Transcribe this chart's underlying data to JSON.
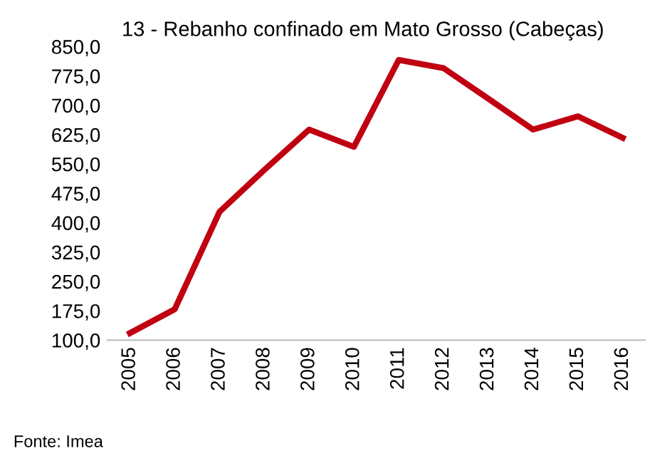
{
  "chart_data": {
    "type": "line",
    "title": "13 - Rebanho confinado em Mato Grosso (Cabeças)",
    "categories": [
      "2005",
      "2006",
      "2007",
      "2008",
      "2009",
      "2010",
      "2011",
      "2012",
      "2013",
      "2014",
      "2015",
      "2016"
    ],
    "series": [
      {
        "color": "#c00010",
        "values": [
          118,
          179,
          428,
          535,
          638,
          594,
          816,
          795,
          717,
          638,
          672,
          617
        ]
      }
    ],
    "ylim": [
      100,
      850
    ],
    "yticks": [
      {
        "value": 100,
        "label": "100,0"
      },
      {
        "value": 175,
        "label": "175,0"
      },
      {
        "value": 250,
        "label": "250,0"
      },
      {
        "value": 325,
        "label": "325,0"
      },
      {
        "value": 400,
        "label": "400,0"
      },
      {
        "value": 475,
        "label": "475,0"
      },
      {
        "value": 550,
        "label": "550,0"
      },
      {
        "value": 625,
        "label": "625,0"
      },
      {
        "value": 700,
        "label": "700,0"
      },
      {
        "value": 775,
        "label": "775,0"
      },
      {
        "value": 850,
        "label": "850,0"
      }
    ],
    "grid": false,
    "legend": false,
    "marker": "none",
    "line_style": "solid",
    "annotations": [
      "Fonte: Imea"
    ]
  }
}
